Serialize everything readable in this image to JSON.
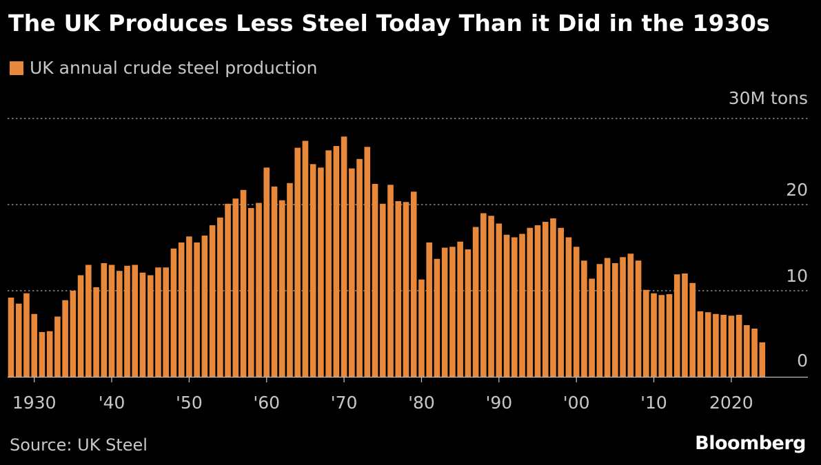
{
  "title": "The UK Produces Less Steel Today Than it Did in the 1930s",
  "legend_label": "UK annual crude steel production",
  "unit_label": "30M tons",
  "source": "Source: UK Steel",
  "brand": "Bloomberg",
  "colors": {
    "bar": "#e8883a",
    "background": "#000000",
    "gridline": "#8a8a8a",
    "text": "#c8c8c8"
  },
  "chart_data": {
    "type": "bar",
    "title": "The UK Produces Less Steel Today Than it Did in the 1930s",
    "ylabel": "30M tons",
    "ylim": [
      0,
      30
    ],
    "grid": true,
    "legend": "top-left",
    "y_ticks": [
      {
        "value": 10,
        "label": "10"
      },
      {
        "value": 20,
        "label": "20"
      },
      {
        "value": 30,
        "label": ""
      }
    ],
    "y_tick_zero": "0",
    "x_ticks": [
      {
        "year": 1930,
        "label": "1930"
      },
      {
        "year": 1940,
        "label": "'40"
      },
      {
        "year": 1950,
        "label": "'50"
      },
      {
        "year": 1960,
        "label": "'60"
      },
      {
        "year": 1970,
        "label": "'70"
      },
      {
        "year": 1980,
        "label": "'80"
      },
      {
        "year": 1990,
        "label": "'90"
      },
      {
        "year": 2000,
        "label": "'00"
      },
      {
        "year": 2010,
        "label": "'10"
      },
      {
        "year": 2020,
        "label": "2020"
      }
    ],
    "series": [
      {
        "name": "UK annual crude steel production",
        "x": [
          1927,
          1928,
          1929,
          1930,
          1931,
          1932,
          1933,
          1934,
          1935,
          1936,
          1937,
          1938,
          1939,
          1940,
          1941,
          1942,
          1943,
          1944,
          1945,
          1946,
          1947,
          1948,
          1949,
          1950,
          1951,
          1952,
          1953,
          1954,
          1955,
          1956,
          1957,
          1958,
          1959,
          1960,
          1961,
          1962,
          1963,
          1964,
          1965,
          1966,
          1967,
          1968,
          1969,
          1970,
          1971,
          1972,
          1973,
          1974,
          1975,
          1976,
          1977,
          1978,
          1979,
          1980,
          1981,
          1982,
          1983,
          1984,
          1985,
          1986,
          1987,
          1988,
          1989,
          1990,
          1991,
          1992,
          1993,
          1994,
          1995,
          1996,
          1997,
          1998,
          1999,
          2000,
          2001,
          2002,
          2003,
          2004,
          2005,
          2006,
          2007,
          2008,
          2009,
          2010,
          2011,
          2012,
          2013,
          2014,
          2015,
          2016,
          2017,
          2018,
          2019,
          2020,
          2021,
          2022,
          2023,
          2024
        ],
        "values": [
          9.2,
          8.5,
          9.7,
          7.3,
          5.2,
          5.3,
          7.0,
          8.9,
          10.0,
          11.8,
          13.0,
          10.4,
          13.2,
          13.0,
          12.3,
          12.9,
          13.0,
          12.1,
          11.8,
          12.7,
          12.7,
          14.9,
          15.6,
          16.3,
          15.6,
          16.4,
          17.6,
          18.5,
          20.1,
          20.7,
          21.7,
          19.6,
          20.2,
          24.3,
          22.1,
          20.5,
          22.5,
          26.6,
          27.4,
          24.7,
          24.3,
          26.3,
          26.8,
          27.9,
          24.2,
          25.3,
          26.7,
          22.4,
          20.1,
          22.3,
          20.4,
          20.3,
          21.5,
          11.3,
          15.6,
          13.7,
          15.0,
          15.1,
          15.7,
          14.8,
          17.4,
          19.0,
          18.7,
          17.8,
          16.5,
          16.2,
          16.6,
          17.3,
          17.6,
          18.0,
          18.4,
          17.3,
          16.2,
          15.1,
          13.5,
          11.4,
          13.1,
          13.8,
          13.2,
          13.9,
          14.3,
          13.5,
          10.1,
          9.7,
          9.5,
          9.6,
          11.9,
          12.0,
          10.9,
          7.6,
          7.5,
          7.3,
          7.2,
          7.1,
          7.2,
          6.0,
          5.6,
          4.0
        ]
      }
    ]
  }
}
